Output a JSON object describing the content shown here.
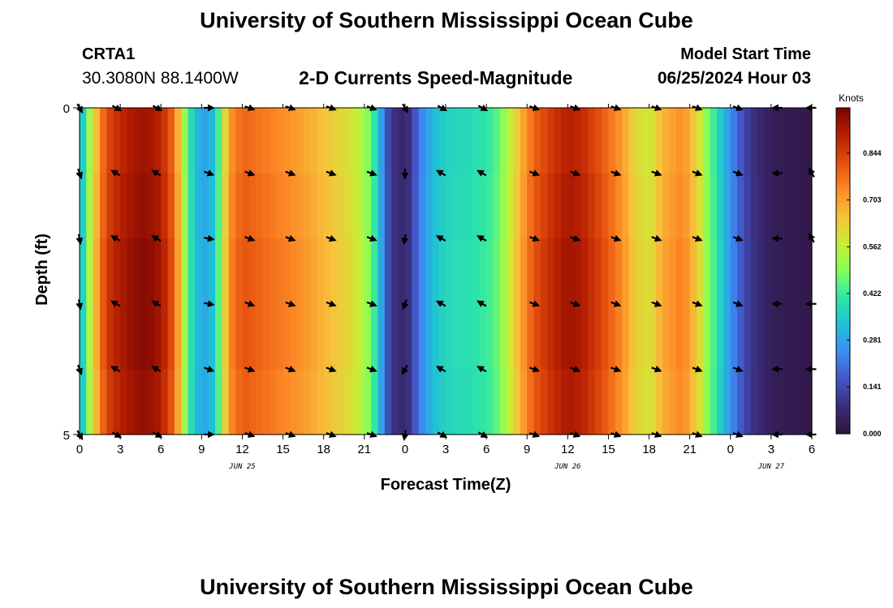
{
  "page": {
    "title": "University of Southern Mississippi Ocean Cube",
    "footer_title": "University of Southern Mississippi Ocean Cube"
  },
  "station": {
    "name": "CRTA1",
    "coords": "30.3080N  88.1400W"
  },
  "model": {
    "start_label": "Model Start Time",
    "start_value": "06/25/2024 Hour 03"
  },
  "chart_data": {
    "type": "heatmap",
    "title": "2-D Currents Speed-Magnitude",
    "xlabel": "Forecast Time(Z)",
    "ylabel": "Depth (ft)",
    "x_range": [
      0,
      54
    ],
    "y_range": [
      0,
      5
    ],
    "y_ticks": [
      0,
      5
    ],
    "x_tick_hours": [
      0,
      3,
      6,
      9,
      12,
      15,
      18,
      21,
      24,
      27,
      30,
      33,
      36,
      39,
      42,
      45,
      48,
      51,
      54
    ],
    "x_tick_labels": [
      "0",
      "3",
      "6",
      "9",
      "12",
      "15",
      "18",
      "21",
      "0",
      "3",
      "6",
      "9",
      "12",
      "15",
      "18",
      "21",
      "0",
      "3",
      "6"
    ],
    "date_labels": [
      {
        "text": "JUN 25",
        "hour": 12
      },
      {
        "text": "JUN 26",
        "hour": 36
      },
      {
        "text": "JUN 27",
        "hour": 51
      }
    ],
    "colorbar": {
      "unit": "Knots",
      "ticks": [
        0.0,
        0.141,
        0.281,
        0.422,
        0.562,
        0.703,
        0.844
      ],
      "tick_labels": [
        "0.000",
        "0.141",
        "0.281",
        "0.422",
        "0.562",
        "0.703",
        "0.844"
      ],
      "min": 0.0,
      "max": 0.98,
      "colors": [
        "#30123b",
        "#3a2d7a",
        "#4454c4",
        "#3d8bf5",
        "#1fbfd9",
        "#2de6a8",
        "#83fe5c",
        "#c7ef34",
        "#f6c33a",
        "#fd8a26",
        "#e44f0e",
        "#b82002",
        "#7a0403"
      ]
    },
    "speed_by_hour": [
      {
        "h": 0.0,
        "v": 0.26
      },
      {
        "h": 0.5,
        "v": 0.48
      },
      {
        "h": 1.0,
        "v": 0.62
      },
      {
        "h": 1.5,
        "v": 0.76
      },
      {
        "h": 2.0,
        "v": 0.86
      },
      {
        "h": 3.0,
        "v": 0.92
      },
      {
        "h": 4.0,
        "v": 0.96
      },
      {
        "h": 5.0,
        "v": 0.97
      },
      {
        "h": 6.0,
        "v": 0.93
      },
      {
        "h": 7.0,
        "v": 0.8
      },
      {
        "h": 7.5,
        "v": 0.62
      },
      {
        "h": 8.0,
        "v": 0.45
      },
      {
        "h": 8.5,
        "v": 0.34
      },
      {
        "h": 9.0,
        "v": 0.3
      },
      {
        "h": 9.5,
        "v": 0.3
      },
      {
        "h": 10.0,
        "v": 0.36
      },
      {
        "h": 10.5,
        "v": 0.55
      },
      {
        "h": 11.0,
        "v": 0.74
      },
      {
        "h": 12.0,
        "v": 0.82
      },
      {
        "h": 14.0,
        "v": 0.78
      },
      {
        "h": 16.0,
        "v": 0.74
      },
      {
        "h": 18.0,
        "v": 0.68
      },
      {
        "h": 20.0,
        "v": 0.62
      },
      {
        "h": 21.0,
        "v": 0.55
      },
      {
        "h": 22.0,
        "v": 0.38
      },
      {
        "h": 22.5,
        "v": 0.2
      },
      {
        "h": 23.0,
        "v": 0.1
      },
      {
        "h": 24.0,
        "v": 0.06
      },
      {
        "h": 24.5,
        "v": 0.12
      },
      {
        "h": 25.0,
        "v": 0.22
      },
      {
        "h": 26.0,
        "v": 0.33
      },
      {
        "h": 27.0,
        "v": 0.38
      },
      {
        "h": 29.0,
        "v": 0.4
      },
      {
        "h": 30.5,
        "v": 0.44
      },
      {
        "h": 31.5,
        "v": 0.55
      },
      {
        "h": 32.5,
        "v": 0.7
      },
      {
        "h": 33.5,
        "v": 0.82
      },
      {
        "h": 35.0,
        "v": 0.9
      },
      {
        "h": 36.0,
        "v": 0.94
      },
      {
        "h": 37.0,
        "v": 0.92
      },
      {
        "h": 38.5,
        "v": 0.84
      },
      {
        "h": 40.0,
        "v": 0.74
      },
      {
        "h": 41.0,
        "v": 0.64
      },
      {
        "h": 42.0,
        "v": 0.6
      },
      {
        "h": 43.0,
        "v": 0.7
      },
      {
        "h": 44.5,
        "v": 0.76
      },
      {
        "h": 45.5,
        "v": 0.65
      },
      {
        "h": 46.5,
        "v": 0.48
      },
      {
        "h": 47.5,
        "v": 0.33
      },
      {
        "h": 48.5,
        "v": 0.2
      },
      {
        "h": 49.5,
        "v": 0.1
      },
      {
        "h": 51.0,
        "v": 0.04
      },
      {
        "h": 54.0,
        "v": 0.02
      }
    ],
    "vectors": {
      "depths": [
        0,
        1,
        2,
        3,
        4,
        5
      ],
      "columns": [
        {
          "h": 0.0,
          "dir": [
            150,
            160,
            170,
            170,
            160,
            150
          ]
        },
        {
          "h": 2.7,
          "dir": [
            120,
            300,
            300,
            300,
            300,
            120
          ]
        },
        {
          "h": 5.7,
          "dir": [
            120,
            300,
            300,
            300,
            300,
            120
          ]
        },
        {
          "h": 9.5,
          "dir": [
            90,
            110,
            100,
            100,
            110,
            90
          ]
        },
        {
          "h": 12.5,
          "dir": [
            110,
            110,
            110,
            110,
            110,
            110
          ]
        },
        {
          "h": 15.5,
          "dir": [
            110,
            110,
            110,
            110,
            110,
            110
          ]
        },
        {
          "h": 18.5,
          "dir": [
            110,
            110,
            110,
            110,
            110,
            110
          ]
        },
        {
          "h": 21.5,
          "dir": [
            110,
            110,
            110,
            110,
            110,
            110
          ]
        },
        {
          "h": 24.0,
          "dir": [
            150,
            180,
            190,
            200,
            210,
            190
          ]
        },
        {
          "h": 26.7,
          "dir": [
            120,
            300,
            300,
            300,
            300,
            120
          ]
        },
        {
          "h": 29.7,
          "dir": [
            120,
            300,
            300,
            300,
            300,
            120
          ]
        },
        {
          "h": 33.5,
          "dir": [
            110,
            110,
            110,
            110,
            110,
            110
          ]
        },
        {
          "h": 36.5,
          "dir": [
            110,
            110,
            110,
            110,
            110,
            110
          ]
        },
        {
          "h": 39.5,
          "dir": [
            110,
            110,
            110,
            110,
            110,
            110
          ]
        },
        {
          "h": 42.5,
          "dir": [
            110,
            110,
            110,
            110,
            110,
            110
          ]
        },
        {
          "h": 45.5,
          "dir": [
            110,
            110,
            110,
            110,
            110,
            110
          ]
        },
        {
          "h": 48.5,
          "dir": [
            110,
            110,
            110,
            110,
            110,
            110
          ]
        },
        {
          "h": 51.5,
          "dir": [
            270,
            270,
            270,
            270,
            270,
            270
          ]
        },
        {
          "h": 54.0,
          "dir": [
            270,
            330,
            330,
            270,
            270,
            270
          ]
        }
      ]
    }
  }
}
